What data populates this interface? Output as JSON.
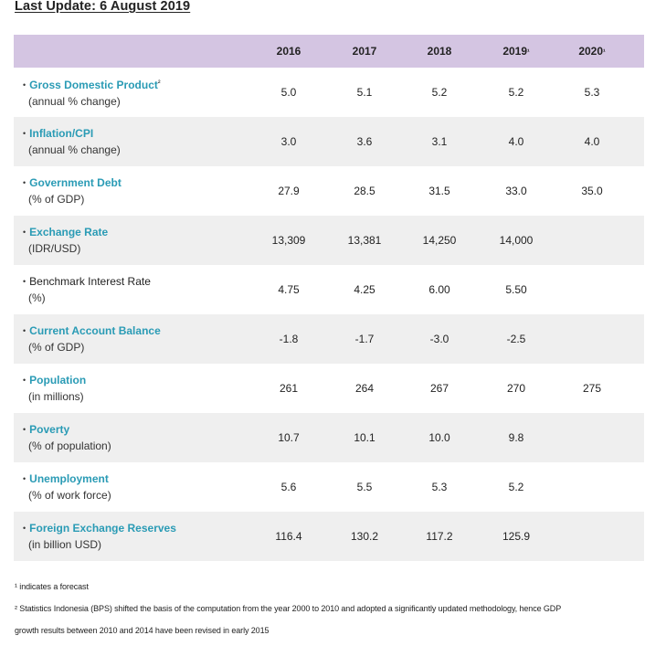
{
  "title": "Last Update: 6 August 2019",
  "header": {
    "years": [
      "2016",
      "2017",
      "2018",
      "2019",
      "2020"
    ],
    "forecast_marks": [
      "",
      "",
      "",
      "¹",
      "¹"
    ]
  },
  "rows": [
    {
      "name": "Gross Domestic Product",
      "name_sup": "²",
      "sub": "(annual % change)",
      "linked": true,
      "values": [
        "5.0",
        "5.1",
        "5.2",
        "5.2",
        "5.3"
      ]
    },
    {
      "name": "Inflation/CPI",
      "name_sup": "",
      "sub": "(annual % change)",
      "linked": true,
      "values": [
        "3.0",
        "3.6",
        "3.1",
        "4.0",
        "4.0"
      ]
    },
    {
      "name": "Government Debt",
      "name_sup": "",
      "sub": "(% of GDP)",
      "linked": true,
      "values": [
        "27.9",
        "28.5",
        "31.5",
        "33.0",
        "35.0"
      ]
    },
    {
      "name": "Exchange Rate",
      "name_sup": "",
      "sub": "(IDR/USD)",
      "linked": true,
      "values": [
        "13,309",
        "13,381",
        "14,250",
        "14,000",
        ""
      ]
    },
    {
      "name": "Benchmark Interest Rate",
      "name_sup": "",
      "sub": "(%)",
      "linked": false,
      "values": [
        "4.75",
        "4.25",
        "6.00",
        "5.50",
        ""
      ]
    },
    {
      "name": "Current Account Balance",
      "name_sup": "",
      "sub": "(% of GDP)",
      "linked": true,
      "values": [
        "-1.8",
        "-1.7",
        "-3.0",
        "-2.5",
        ""
      ]
    },
    {
      "name": "Population",
      "name_sup": "",
      "sub": "(in millions)",
      "linked": true,
      "values": [
        "261",
        "264",
        "267",
        "270",
        "275"
      ]
    },
    {
      "name": "Poverty",
      "name_sup": "",
      "sub": "(% of population)",
      "linked": true,
      "values": [
        "10.7",
        "10.1",
        "10.0",
        "9.8",
        ""
      ]
    },
    {
      "name": "Unemployment",
      "name_sup": "",
      "sub": "(% of work force)",
      "linked": true,
      "values": [
        "5.6",
        "5.5",
        "5.3",
        "5.2",
        ""
      ]
    },
    {
      "name": "Foreign Exchange Reserves",
      "name_sup": "",
      "sub": "(in billion USD)",
      "linked": true,
      "values": [
        "116.4",
        "130.2",
        "117.2",
        "125.9",
        ""
      ]
    }
  ],
  "footnotes": {
    "note1": "¹ indicates a forecast",
    "note2_line1": "² Statistics Indonesia (BPS) shifted the basis of the computation from the year 2000 to 2010 and adopted a significantly updated methodology, hence GDP",
    "note2_line2": "growth results between 2010 and 2014 have been revised in early 2015"
  },
  "colors": {
    "header_bg": "#d4c5e2",
    "row_shade": "#efefef",
    "link": "#2a9bb5"
  }
}
